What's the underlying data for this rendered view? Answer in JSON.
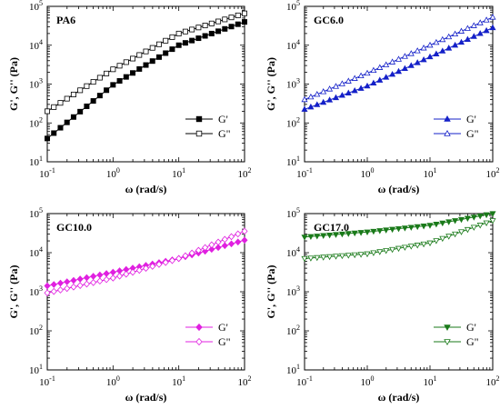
{
  "chart_data": [
    {
      "type": "scatter",
      "title": "PA6",
      "xlabel": "ω (rad/s)",
      "ylabel": "G', G'' (Pa)",
      "xscale": "log",
      "yscale": "log",
      "xlim": [
        0.1,
        100
      ],
      "ylim": [
        10,
        100000
      ],
      "x_ticks": [
        "10^-1",
        "10^0",
        "10^1",
        "10^2"
      ],
      "y_ticks": [
        "10^1",
        "10^2",
        "10^3",
        "10^4",
        "10^5"
      ],
      "legend_position": "bottom-right",
      "series": [
        {
          "name": "G'",
          "marker": "square",
          "filled": true,
          "color": "#000000",
          "x_log10_range": [
            -1,
            2
          ],
          "y_log10": [
            1.6,
            2.98,
            4.0,
            4.6
          ]
        },
        {
          "name": "G\"",
          "marker": "square",
          "filled": false,
          "color": "#000000",
          "x_log10_range": [
            -1,
            2
          ],
          "y_log10": [
            2.3,
            3.38,
            4.3,
            4.82
          ]
        }
      ]
    },
    {
      "type": "scatter",
      "title": "GC6.0",
      "xlabel": "ω (rad/s)",
      "ylabel": "G', G'' (Pa)",
      "xscale": "log",
      "yscale": "log",
      "xlim": [
        0.1,
        100
      ],
      "ylim": [
        10,
        100000
      ],
      "x_ticks": [
        "10^-1",
        "10^0",
        "10^1",
        "10^2"
      ],
      "y_ticks": [
        "10^1",
        "10^2",
        "10^3",
        "10^4",
        "10^5"
      ],
      "legend_position": "bottom-right",
      "series": [
        {
          "name": "G'",
          "marker": "triangle-up",
          "filled": true,
          "color": "#1420c8",
          "x_log10_range": [
            -1,
            2
          ],
          "y_log10": [
            2.35,
            2.95,
            3.7,
            4.45
          ]
        },
        {
          "name": "G\"",
          "marker": "triangle-up",
          "filled": false,
          "color": "#1420c8",
          "x_log10_range": [
            -1,
            2
          ],
          "y_log10": [
            2.6,
            3.28,
            4.0,
            4.72
          ]
        }
      ]
    },
    {
      "type": "scatter",
      "title": "GC10.0",
      "xlabel": "ω (rad/s)",
      "ylabel": "G', G'' (Pa)",
      "xscale": "log",
      "yscale": "log",
      "xlim": [
        0.1,
        100
      ],
      "ylim": [
        10,
        100000
      ],
      "x_ticks": [
        "10^-1",
        "10^0",
        "10^1",
        "10^2"
      ],
      "y_ticks": [
        "10^1",
        "10^2",
        "10^3",
        "10^4",
        "10^5"
      ],
      "legend_position": "bottom-right",
      "series": [
        {
          "name": "G'",
          "marker": "diamond",
          "filled": true,
          "color": "#e020e0",
          "x_log10_range": [
            -1,
            2
          ],
          "y_log10": [
            3.15,
            3.5,
            3.85,
            4.32
          ]
        },
        {
          "name": "G\"",
          "marker": "diamond",
          "filled": false,
          "color": "#e020e0",
          "x_log10_range": [
            -1,
            2
          ],
          "y_log10": [
            2.97,
            3.35,
            3.85,
            4.55
          ]
        }
      ]
    },
    {
      "type": "scatter",
      "title": "GC17.0",
      "xlabel": "ω (rad/s)",
      "ylabel": "G', G'' (Pa)",
      "xscale": "log",
      "yscale": "log",
      "xlim": [
        0.1,
        100
      ],
      "ylim": [
        10,
        100000
      ],
      "x_ticks": [
        "10^-1",
        "10^0",
        "10^1",
        "10^2"
      ],
      "y_ticks": [
        "10^1",
        "10^2",
        "10^3",
        "10^4",
        "10^5"
      ],
      "legend_position": "bottom-right",
      "series": [
        {
          "name": "G'",
          "marker": "triangle-down",
          "filled": true,
          "color": "#1a7a1a",
          "x_log10_range": [
            -1,
            2
          ],
          "y_log10": [
            4.4,
            4.53,
            4.7,
            5.0
          ]
        },
        {
          "name": "G\"",
          "marker": "triangle-down",
          "filled": false,
          "color": "#1a7a1a",
          "x_log10_range": [
            -1,
            2
          ],
          "y_log10": [
            3.85,
            3.97,
            4.25,
            4.82
          ]
        }
      ]
    }
  ]
}
